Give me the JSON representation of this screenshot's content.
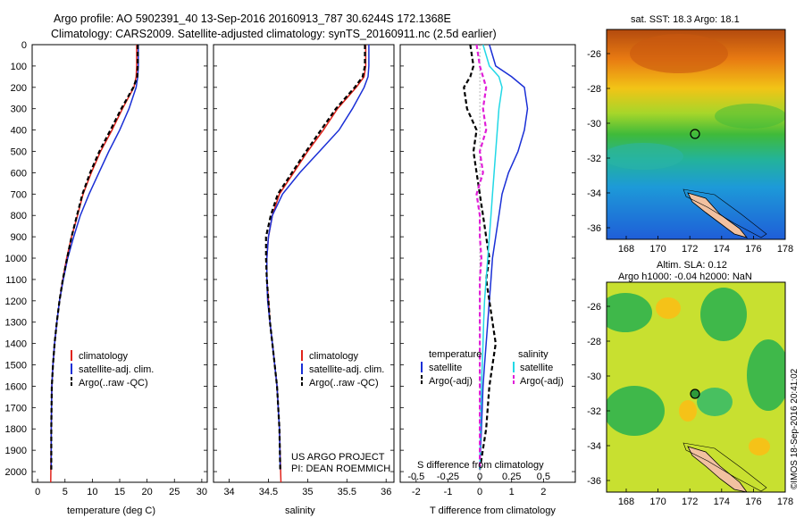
{
  "title_line1": "Argo profile: AO 5902391_40 13-Sep-2016 20160913_787 30.6244S 172.1368E",
  "title_line2": "Climatology: CARS2009. Satellite-adjusted climatology: synTS_20160911.nc (2.5d earlier)",
  "colors": {
    "climatology": "#e0231b",
    "satellite": "#1a2fd6",
    "argo": "#000000",
    "cyan": "#22d8e6",
    "magenta": "#e01fd8"
  },
  "chart_data": [
    {
      "type": "line",
      "xlabel": "temperature (deg C)",
      "ylabel": "",
      "xlim": [
        -1,
        31
      ],
      "ylim": [
        2050,
        0
      ],
      "xticks": [
        0,
        5,
        10,
        15,
        20,
        25,
        30
      ],
      "yticks": [
        0,
        100,
        200,
        300,
        400,
        500,
        600,
        700,
        800,
        900,
        1000,
        1100,
        1200,
        1300,
        1400,
        1500,
        1600,
        1700,
        1800,
        1900,
        2000
      ],
      "legend": [
        "climatology",
        "satellite-adj. clim.",
        "Argo(..raw -QC)"
      ],
      "series": [
        {
          "name": "climatology",
          "color": "#e0231b",
          "dash": "",
          "x": [
            18.1,
            18.1,
            18.0,
            17.6,
            15.5,
            13.6,
            11.5,
            9.8,
            8.3,
            7.3,
            6.2,
            5.3,
            4.6,
            4.0,
            3.5,
            3.1,
            2.8,
            2.6,
            2.5,
            2.4
          ],
          "y": [
            0,
            100,
            150,
            200,
            300,
            400,
            500,
            600,
            700,
            800,
            900,
            1000,
            1100,
            1200,
            1300,
            1400,
            1500,
            1600,
            1800,
            2050
          ]
        },
        {
          "name": "satellite-adj. clim.",
          "color": "#1a2fd6",
          "dash": "",
          "x": [
            18.4,
            18.4,
            18.3,
            18.0,
            16.7,
            15.0,
            13.0,
            11.2,
            9.4,
            7.8,
            6.6,
            5.5,
            4.7,
            4.0,
            3.5,
            3.1,
            2.8,
            2.6,
            2.5,
            2.5
          ],
          "y": [
            0,
            100,
            150,
            200,
            300,
            400,
            500,
            600,
            700,
            800,
            900,
            1000,
            1100,
            1200,
            1300,
            1400,
            1500,
            1600,
            1800,
            1990
          ]
        },
        {
          "name": "Argo(..raw -QC)",
          "color": "#000000",
          "dash": "5,3",
          "x": [
            18.3,
            18.3,
            18.2,
            17.5,
            15.3,
            13.3,
            11.3,
            9.6,
            8.2,
            7.2,
            6.2,
            5.4,
            4.6,
            4.0,
            3.5,
            3.1,
            2.8,
            2.6,
            2.5,
            2.5
          ],
          "y": [
            0,
            100,
            150,
            200,
            300,
            400,
            500,
            600,
            700,
            800,
            900,
            1000,
            1100,
            1200,
            1300,
            1400,
            1500,
            1600,
            1800,
            1990
          ]
        }
      ]
    },
    {
      "type": "line",
      "xlabel": "salinity",
      "xlim": [
        33.8,
        36.1
      ],
      "ylim": [
        2050,
        0
      ],
      "xticks": [
        34,
        34.5,
        35,
        35.5,
        36
      ],
      "legend": [
        "climatology",
        "satellite-adj. clim.",
        "Argo(..raw -QC)"
      ],
      "series": [
        {
          "name": "climatology",
          "color": "#e0231b",
          "dash": "",
          "x": [
            35.74,
            35.74,
            35.72,
            35.62,
            35.38,
            35.2,
            35.0,
            34.82,
            34.64,
            34.55,
            34.5,
            34.48,
            34.48,
            34.5,
            34.52,
            34.55,
            34.58,
            34.61,
            34.64,
            34.66
          ],
          "y": [
            0,
            100,
            150,
            200,
            300,
            400,
            500,
            600,
            700,
            800,
            900,
            1000,
            1100,
            1200,
            1300,
            1400,
            1500,
            1600,
            1800,
            2050
          ]
        },
        {
          "name": "satellite-adj. clim.",
          "color": "#1a2fd6",
          "dash": "",
          "x": [
            35.78,
            35.78,
            35.77,
            35.72,
            35.57,
            35.4,
            35.15,
            34.9,
            34.68,
            34.55,
            34.5,
            34.48,
            34.48,
            34.49,
            34.52,
            34.55,
            34.58,
            34.61,
            34.64,
            34.65
          ],
          "y": [
            0,
            100,
            150,
            200,
            300,
            400,
            500,
            600,
            700,
            800,
            900,
            1000,
            1100,
            1200,
            1300,
            1400,
            1500,
            1600,
            1800,
            1990
          ]
        },
        {
          "name": "Argo(..raw -QC)",
          "color": "#000000",
          "dash": "5,3",
          "x": [
            35.73,
            35.73,
            35.7,
            35.6,
            35.36,
            35.17,
            34.98,
            34.8,
            34.62,
            34.53,
            34.47,
            34.47,
            34.48,
            34.5,
            34.52,
            34.55,
            34.58,
            34.61,
            34.64,
            34.65
          ],
          "y": [
            0,
            100,
            150,
            200,
            300,
            400,
            500,
            600,
            700,
            800,
            900,
            1000,
            1100,
            1200,
            1300,
            1400,
            1500,
            1600,
            1800,
            1990
          ]
        }
      ]
    },
    {
      "type": "line",
      "xlabel": "T difference from climatology",
      "xlabel2": "S difference from climatology",
      "xlim": [
        -2.5,
        3.0
      ],
      "ylim": [
        2050,
        0
      ],
      "xticks": [
        -2,
        -1,
        0,
        1,
        2
      ],
      "xticks_S": [
        -0.5,
        -0.25,
        0,
        0.25,
        0.5
      ],
      "legend_headers": [
        "temperature",
        "salinity"
      ],
      "legend": [
        "satellite",
        "Argo(-adj)",
        "satellite",
        "Argo(-adj)"
      ],
      "series": [
        {
          "name": "temperature satellite",
          "color": "#1a2fd6",
          "dash": "",
          "x": [
            0.3,
            0.5,
            1.0,
            1.4,
            1.5,
            1.4,
            1.2,
            0.9,
            0.7,
            0.6,
            0.5,
            0.4,
            0.35,
            0.3,
            0.25,
            0.2,
            0.15,
            0.1,
            0.05,
            0.0
          ],
          "y": [
            0,
            100,
            150,
            200,
            300,
            400,
            500,
            600,
            700,
            800,
            900,
            1000,
            1100,
            1200,
            1300,
            1400,
            1500,
            1600,
            1800,
            1990
          ]
        },
        {
          "name": "temperature Argo(-adj)",
          "color": "#000000",
          "dash": "5,3",
          "x": [
            -0.3,
            -0.2,
            -0.3,
            -0.5,
            -0.4,
            -0.1,
            -0.2,
            -0.1,
            0.0,
            0.1,
            0.2,
            0.3,
            0.2,
            0.3,
            0.4,
            0.5,
            0.4,
            0.3,
            0.2,
            0.0
          ],
          "y": [
            0,
            100,
            150,
            200,
            300,
            400,
            500,
            600,
            700,
            800,
            900,
            1000,
            1100,
            1200,
            1300,
            1400,
            1500,
            1600,
            1800,
            1990
          ]
        },
        {
          "name": "salinity satellite",
          "color": "#22d8e6",
          "dash": "",
          "x": [
            0.1,
            0.3,
            0.6,
            0.7,
            0.6,
            0.55,
            0.5,
            0.45,
            0.4,
            0.35,
            0.3,
            0.25,
            0.2,
            0.15,
            0.12,
            0.1,
            0.08,
            0.05,
            0.02,
            0.0
          ],
          "y": [
            0,
            100,
            150,
            200,
            300,
            400,
            500,
            600,
            700,
            800,
            900,
            1000,
            1100,
            1200,
            1300,
            1400,
            1500,
            1600,
            1800,
            1990
          ]
        },
        {
          "name": "salinity Argo(-adj)",
          "color": "#e01fd8",
          "dash": "5,3",
          "x": [
            -0.1,
            0.0,
            0.1,
            0.2,
            0.1,
            0.2,
            0.0,
            0.1,
            -0.1,
            0.0,
            0.0,
            0.05,
            0.0,
            0.0,
            0.0,
            0.0,
            0.0,
            0.0,
            0.0,
            0.0
          ],
          "y": [
            0,
            100,
            150,
            200,
            300,
            400,
            500,
            600,
            700,
            800,
            900,
            1000,
            1100,
            1200,
            1300,
            1400,
            1500,
            1600,
            1800,
            1990
          ]
        }
      ]
    }
  ],
  "credits": {
    "line1": "US ARGO PROJECT",
    "line2": "PI: DEAN ROEMMICH"
  },
  "map_top": {
    "title": "sat. SST: 18.3 Argo: 18.1",
    "yticks": [
      "-26",
      "-28",
      "-30",
      "-32",
      "-34",
      "-36"
    ],
    "xticks": [
      "168",
      "170",
      "172",
      "174",
      "176",
      "178"
    ]
  },
  "map_bottom": {
    "title1": "Altim. SLA: 0.12",
    "title2": "Argo h1000: -0.04 h2000: NaN",
    "yticks": [
      "-26",
      "-28",
      "-30",
      "-32",
      "-34",
      "-36"
    ],
    "xticks": [
      "168",
      "170",
      "172",
      "174",
      "176",
      "178"
    ]
  },
  "stamp": "©IMOS 18-Sep-2016 20:41:02"
}
